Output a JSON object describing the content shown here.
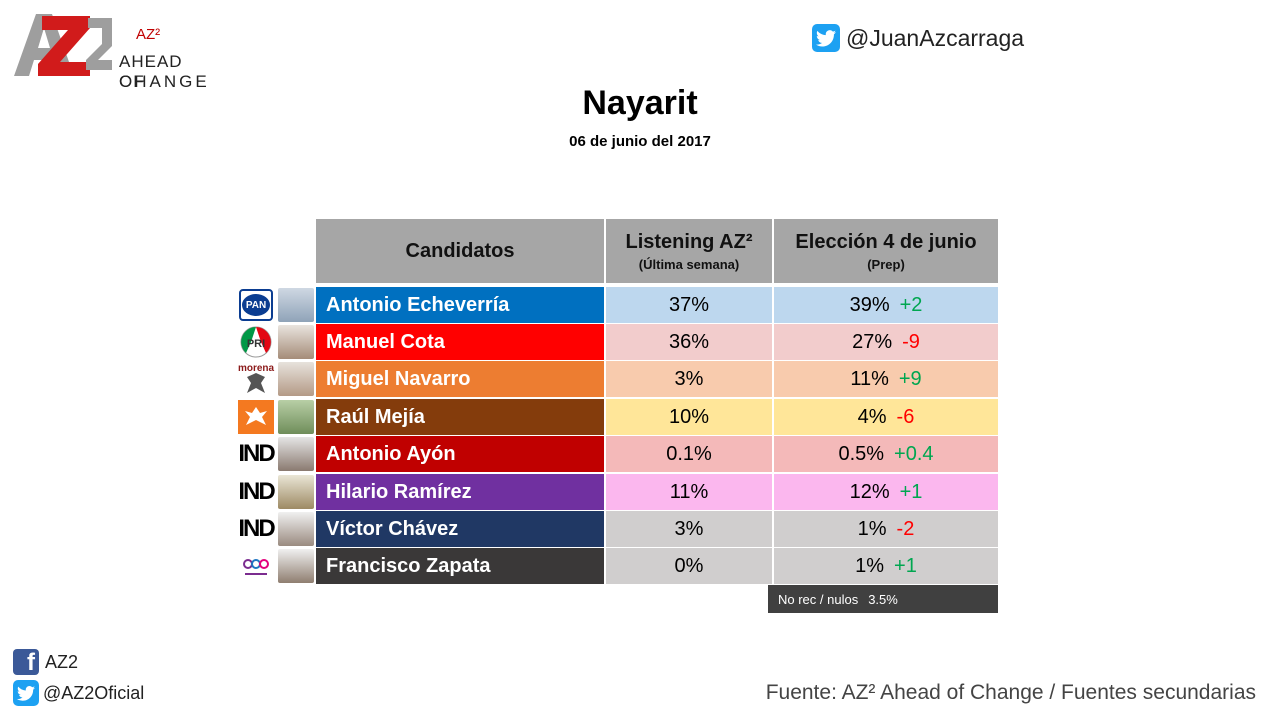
{
  "brand": {
    "mark": "AZ2",
    "superscript": "AZ²",
    "line1": "AHEAD OF",
    "line2": "CHANGE"
  },
  "social_top": {
    "handle": "@JuanAzcarraga",
    "icon": "twitter-icon"
  },
  "title": "Nayarit",
  "subtitle": "06 de junio del 2017",
  "chart_data": {
    "type": "table",
    "headers": {
      "candidates": "Candidatos",
      "listening": "Listening AZ²",
      "listening_sub": "(Última semana)",
      "election": "Elección 4 de junio",
      "election_sub": "(Prep)"
    },
    "rows": [
      {
        "party": "PAN",
        "name": "Antonio Echeverría",
        "listening": "37%",
        "election": "39%",
        "change": "+2",
        "name_bg": "#0070c0",
        "row_bg": "#bdd7ee"
      },
      {
        "party": "PRI",
        "name": "Manuel Cota",
        "listening": "36%",
        "election": "27%",
        "change": "-9",
        "name_bg": "#ff0000",
        "row_bg": "#f2cccc"
      },
      {
        "party": "morena",
        "name": "Miguel Navarro",
        "listening": "3%",
        "election": "11%",
        "change": "+9",
        "name_bg": "#ed7d31",
        "row_bg": "#f8cbad"
      },
      {
        "party": "CIUDADANO",
        "name": "Raúl Mejía",
        "listening": "10%",
        "election": "4%",
        "change": "-6",
        "name_bg": "#843c0c",
        "row_bg": "#ffe699"
      },
      {
        "party": "IND",
        "name": "Antonio Ayón",
        "listening": "0.1%",
        "election": "0.5%",
        "change": "+0.4",
        "name_bg": "#c00000",
        "row_bg": "#f4b9b9"
      },
      {
        "party": "IND",
        "name": "Hilario Ramírez",
        "listening": "11%",
        "election": "12%",
        "change": "+1",
        "name_bg": "#7030a0",
        "row_bg": "#fbb7ee"
      },
      {
        "party": "IND",
        "name": "Víctor Chávez",
        "listening": "3%",
        "election": "1%",
        "change": "-2",
        "name_bg": "#203864",
        "row_bg": "#d0cece"
      },
      {
        "party": "encuentro social",
        "name": "Francisco Zapata",
        "listening": "0%",
        "election": "1%",
        "change": "+1",
        "name_bg": "#3a3838",
        "row_bg": "#d0cece"
      }
    ],
    "footnote": {
      "label": "No rec / nulos",
      "value": "3.5%"
    },
    "colors": {
      "positive": "#00a650",
      "negative": "#ff0000",
      "header_bg": "#a6a6a6"
    }
  },
  "social_bottom": {
    "facebook": {
      "label": "AZ2",
      "icon": "facebook-icon"
    },
    "twitter": {
      "label": "@AZ2Oficial",
      "icon": "twitter-icon"
    }
  },
  "source": "Fuente: AZ² Ahead of Change / Fuentes secundarias"
}
